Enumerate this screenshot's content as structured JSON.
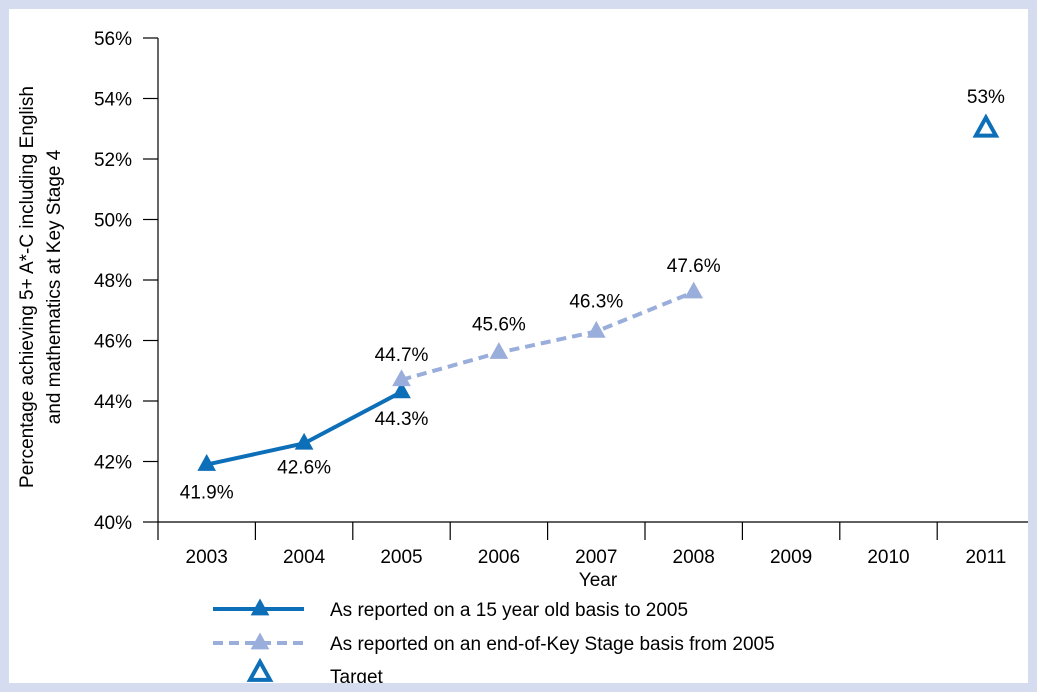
{
  "chart_data": {
    "type": "line",
    "title": "",
    "xlabel": "Year",
    "ylabel_lines": [
      "Percentage achieving 5+ A*-C including English",
      "and mathematics at Key Stage 4"
    ],
    "categories": [
      "2003",
      "2004",
      "2005",
      "2006",
      "2007",
      "2008",
      "2009",
      "2010",
      "2011"
    ],
    "ylim": [
      40,
      56
    ],
    "yticks": [
      40,
      42,
      44,
      46,
      48,
      50,
      52,
      54,
      56
    ],
    "ytick_labels": [
      "40%",
      "42%",
      "44%",
      "46%",
      "48%",
      "50%",
      "52%",
      "54%",
      "56%"
    ],
    "grid": false,
    "legend_position": "bottom",
    "series": [
      {
        "name": "As reported on a 15 year old basis to 2005",
        "style": "solid",
        "marker": "filled-triangle",
        "color": "#0d6fb8",
        "points": [
          {
            "x": "2003",
            "y": 41.9,
            "label": "41.9%"
          },
          {
            "x": "2004",
            "y": 42.6,
            "label": "42.6%"
          },
          {
            "x": "2005",
            "y": 44.3,
            "label": "44.3%"
          }
        ]
      },
      {
        "name": "As reported on an end-of-Key Stage basis from 2005",
        "style": "dashed",
        "marker": "filled-triangle",
        "color": "#9aaedb",
        "points": [
          {
            "x": "2005",
            "y": 44.7,
            "label": "44.7%"
          },
          {
            "x": "2006",
            "y": 45.6,
            "label": "45.6%"
          },
          {
            "x": "2007",
            "y": 46.3,
            "label": "46.3%"
          },
          {
            "x": "2008",
            "y": 47.6,
            "label": "47.6%"
          }
        ]
      },
      {
        "name": "Target",
        "style": "none",
        "marker": "open-triangle",
        "color": "#0d6fb8",
        "points": [
          {
            "x": "2011",
            "y": 53,
            "label": "53%"
          }
        ]
      }
    ]
  }
}
